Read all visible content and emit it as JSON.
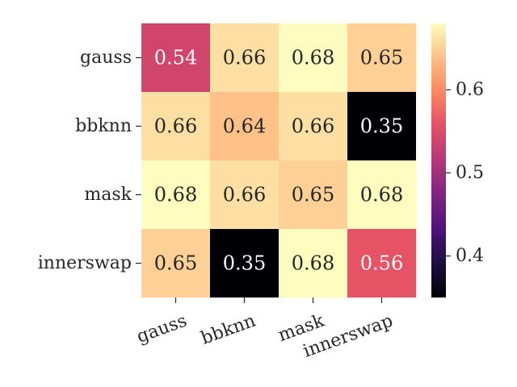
{
  "chart_data": {
    "type": "heatmap",
    "title": "",
    "xlabel": "",
    "ylabel": "",
    "rows": [
      "gauss",
      "bbknn",
      "mask",
      "innerswap"
    ],
    "columns": [
      "gauss",
      "bbknn",
      "mask",
      "innerswap"
    ],
    "values": [
      [
        0.54,
        0.66,
        0.68,
        0.65
      ],
      [
        0.66,
        0.64,
        0.66,
        0.35
      ],
      [
        0.68,
        0.66,
        0.65,
        0.68
      ],
      [
        0.65,
        0.35,
        0.68,
        0.56
      ]
    ],
    "colormap": "magma",
    "vmin": 0.35,
    "vmax": 0.68,
    "colorbar_ticks": [
      0.4,
      0.5,
      0.6
    ],
    "colorbar_tick_labels": [
      "0.4",
      "0.5",
      "0.6"
    ],
    "colorbar_position": "right"
  }
}
